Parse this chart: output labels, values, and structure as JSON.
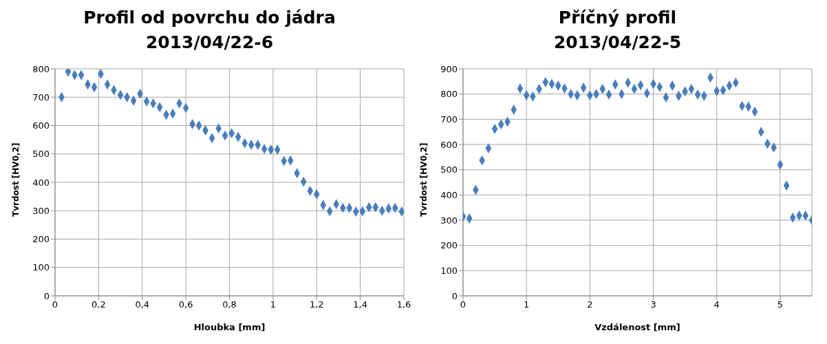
{
  "chart_data": [
    {
      "type": "scatter",
      "title": "Profil od povrchu do jádra",
      "subtitle": "2013/04/22-6",
      "xlabel": "Hloubka [mm]",
      "ylabel": "Tvrdost [HV0,2]",
      "x": [
        0.03,
        0.06,
        0.09,
        0.12,
        0.15,
        0.18,
        0.21,
        0.24,
        0.27,
        0.3,
        0.33,
        0.36,
        0.39,
        0.42,
        0.45,
        0.48,
        0.51,
        0.54,
        0.57,
        0.6,
        0.63,
        0.66,
        0.69,
        0.72,
        0.75,
        0.78,
        0.81,
        0.84,
        0.87,
        0.9,
        0.93,
        0.96,
        0.99,
        1.02,
        1.05,
        1.08,
        1.11,
        1.14,
        1.17,
        1.2,
        1.23,
        1.26,
        1.29,
        1.32,
        1.35,
        1.38,
        1.41,
        1.44,
        1.47,
        1.5,
        1.53,
        1.56,
        1.59
      ],
      "series": [
        {
          "color": "#4a7ebb",
          "values": [
            700,
            790,
            778,
            778,
            745,
            735,
            782,
            745,
            725,
            708,
            700,
            688,
            712,
            685,
            678,
            665,
            638,
            642,
            678,
            662,
            605,
            600,
            583,
            556,
            590,
            565,
            573,
            560,
            538,
            532,
            532,
            518,
            515,
            515,
            475,
            477,
            432,
            402,
            370,
            358,
            320,
            298,
            323,
            310,
            310,
            297,
            298,
            312,
            312,
            300,
            308,
            310,
            297
          ]
        }
      ],
      "xlim": [
        0,
        1.6
      ],
      "xticks": [
        0,
        {
          "value": 0.2,
          "label": "0,2"
        },
        {
          "value": 0.4,
          "label": "0,4"
        },
        {
          "value": 0.6,
          "label": "0,6"
        },
        {
          "value": 0.8,
          "label": "0,8"
        },
        1,
        {
          "value": 1.2,
          "label": "1,2"
        },
        {
          "value": 1.4,
          "label": "1,4"
        },
        {
          "value": 1.6,
          "label": "1,6"
        }
      ],
      "ylim": [
        0,
        800
      ],
      "yticks": [
        0,
        100,
        200,
        300,
        400,
        500,
        600,
        700,
        800
      ],
      "grid": true,
      "marker": "diamond",
      "legend": false
    },
    {
      "type": "scatter",
      "title": "Příčný profil",
      "subtitle": "2013/04/22-5",
      "xlabel": "Vzdálenost [mm]",
      "ylabel": "Tvrdost [HV0,2]",
      "x": [
        0,
        0.1,
        0.2,
        0.3,
        0.4,
        0.5,
        0.6,
        0.7,
        0.8,
        0.9,
        1.0,
        1.1,
        1.2,
        1.3,
        1.4,
        1.5,
        1.6,
        1.7,
        1.8,
        1.9,
        2.0,
        2.1,
        2.2,
        2.3,
        2.4,
        2.5,
        2.6,
        2.7,
        2.8,
        2.9,
        3.0,
        3.1,
        3.2,
        3.3,
        3.4,
        3.5,
        3.6,
        3.7,
        3.8,
        3.9,
        4.0,
        4.1,
        4.2,
        4.3,
        4.4,
        4.5,
        4.6,
        4.7,
        4.8,
        4.9,
        5.0,
        5.1,
        5.2,
        5.3,
        5.4,
        5.5
      ],
      "series": [
        {
          "color": "#4a7ebb",
          "values": [
            315,
            307,
            420,
            537,
            585,
            662,
            680,
            690,
            738,
            822,
            795,
            790,
            820,
            847,
            840,
            833,
            822,
            800,
            795,
            825,
            795,
            800,
            820,
            798,
            838,
            800,
            845,
            820,
            835,
            803,
            840,
            828,
            787,
            833,
            793,
            810,
            820,
            798,
            793,
            865,
            812,
            815,
            833,
            845,
            753,
            750,
            730,
            650,
            603,
            588,
            520,
            437,
            310,
            318,
            318,
            300
          ]
        }
      ],
      "xlim": [
        0,
        5.5
      ],
      "xticks": [
        0,
        1,
        2,
        3,
        4,
        5
      ],
      "ylim": [
        0,
        900
      ],
      "yticks": [
        0,
        100,
        200,
        300,
        400,
        500,
        600,
        700,
        800,
        900
      ],
      "grid": true,
      "marker": "diamond",
      "legend": false
    }
  ]
}
